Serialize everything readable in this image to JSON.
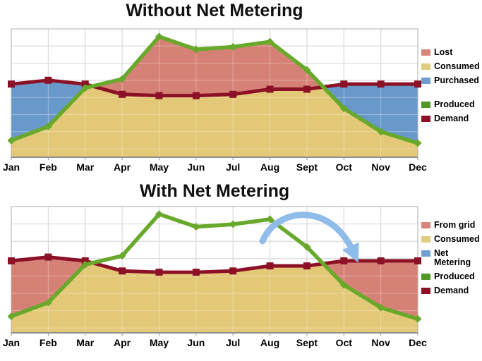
{
  "chart_data": [
    {
      "type": "area",
      "title": "Without Net Metering",
      "categories": [
        "Jan",
        "Feb",
        "Mar",
        "Apr",
        "May",
        "Jun",
        "Jul",
        "Aug",
        "Sept",
        "Oct",
        "Nov",
        "Dec"
      ],
      "series": [
        {
          "name": "Produced",
          "color": "#68A92B",
          "marker": "diamond",
          "values": [
            13,
            24,
            54,
            61,
            94,
            84,
            86,
            90,
            68,
            38,
            20,
            11
          ]
        },
        {
          "name": "Demand",
          "color": "#8C1126",
          "marker": "square",
          "values": [
            57,
            60,
            57,
            49,
            48,
            48,
            49,
            53,
            53,
            57,
            57,
            57
          ]
        }
      ],
      "areas": [
        {
          "name": "Lost",
          "color": "#D68176",
          "region": "produced_minus_demand"
        },
        {
          "name": "Consumed",
          "color": "#E3C878",
          "region": "min"
        },
        {
          "name": "Purchased",
          "color": "#6998CA",
          "region": "demand_minus_produced"
        }
      ],
      "legend": [
        {
          "label": "Lost",
          "color": "#D8847B",
          "type": "area"
        },
        {
          "label": "Consumed",
          "color": "#E0CB7E",
          "type": "area"
        },
        {
          "label": "Purchased",
          "color": "#6F9FCF",
          "type": "area"
        },
        {
          "label": "Produced",
          "color": "#529828",
          "type": "line",
          "gap_before": true
        },
        {
          "label": "Demand",
          "color": "#8C1126",
          "type": "line"
        }
      ],
      "y_axis": {
        "tick_labels_visible": false,
        "range": [
          0,
          100
        ]
      },
      "grid": true,
      "legend_position": "right"
    },
    {
      "type": "area",
      "title": "With Net Metering",
      "categories": [
        "Jan",
        "Feb",
        "Mar",
        "Apr",
        "May",
        "Jun",
        "Jul",
        "Aug",
        "Sept",
        "Oct",
        "Nov",
        "Dec"
      ],
      "series": [
        {
          "name": "Produced",
          "color": "#68A92B",
          "marker": "diamond",
          "values": [
            13,
            24,
            54,
            61,
            94,
            84,
            86,
            90,
            68,
            38,
            20,
            11
          ]
        },
        {
          "name": "Demand",
          "color": "#8C1126",
          "marker": "square",
          "values": [
            57,
            60,
            57,
            49,
            48,
            48,
            49,
            53,
            53,
            57,
            57,
            57
          ]
        }
      ],
      "areas": [
        {
          "name": "From grid",
          "color": "#D68176",
          "region": "demand_minus_produced"
        },
        {
          "name": "Consumed",
          "color": "#E3C878",
          "region": "min"
        }
      ],
      "legend": [
        {
          "label": "From grid",
          "color": "#D8847B",
          "type": "area"
        },
        {
          "label": "Consumed",
          "color": "#E0CB7E",
          "type": "area"
        },
        {
          "label": "Net Metering",
          "color": "#6F9FCF",
          "type": "area"
        },
        {
          "label": "Produced",
          "color": "#529828",
          "type": "line"
        },
        {
          "label": "Demand",
          "color": "#8C1126",
          "type": "line"
        }
      ],
      "annotation": {
        "shape": "curved-arrow",
        "color": "#8FBCE8",
        "from_month": "Aug",
        "to_month": "Nov"
      },
      "y_axis": {
        "tick_labels_visible": false,
        "range": [
          0,
          100
        ]
      },
      "grid": true,
      "legend_position": "right"
    }
  ]
}
